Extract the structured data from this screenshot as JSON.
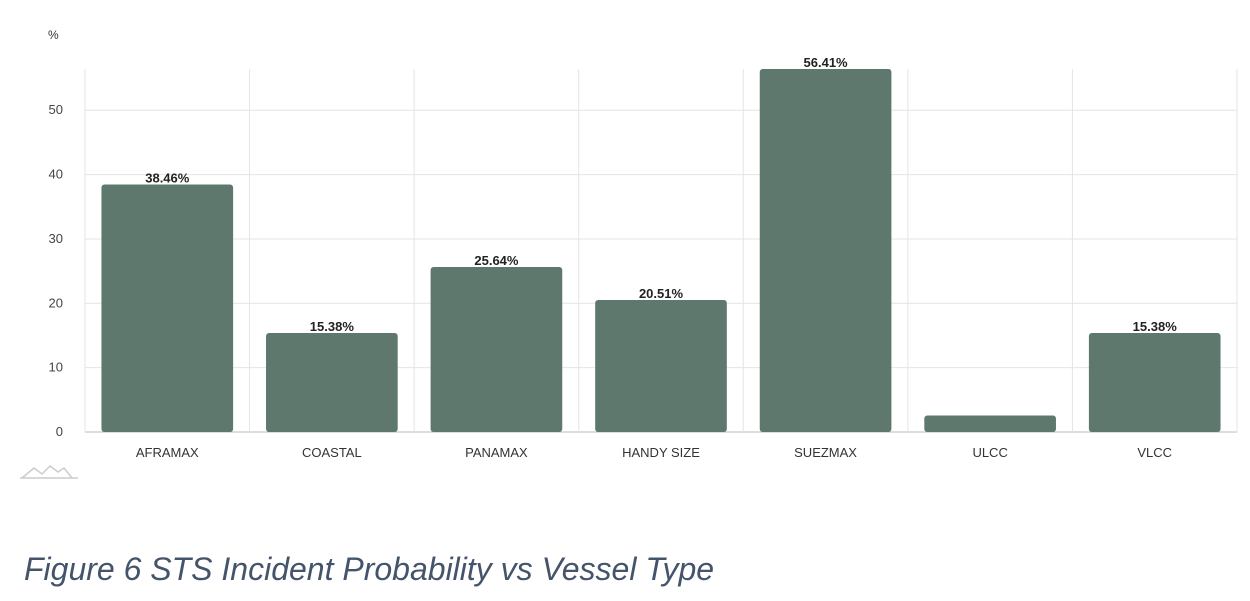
{
  "chart_data": {
    "type": "bar",
    "ylabel": "%",
    "ylim": [
      0,
      56.41
    ],
    "yticks": [
      0,
      10,
      20,
      30,
      40,
      50
    ],
    "categories": [
      "AFRAMAX",
      "COASTAL",
      "PANAMAX",
      "HANDY SIZE",
      "SUEZMAX",
      "ULCC",
      "VLCC"
    ],
    "values": [
      38.46,
      15.38,
      25.64,
      20.51,
      56.41,
      2.56,
      15.38
    ],
    "data_labels": [
      "38.46%",
      "15.38%",
      "25.64%",
      "20.51%",
      "56.41%",
      "",
      "15.38%"
    ],
    "bar_color": "#5e786e",
    "grid": true
  },
  "figure": {
    "caption": "Figure 6 STS Incident Probability vs Vessel Type"
  },
  "toolbar": {
    "icon": "line-chart-icon"
  }
}
